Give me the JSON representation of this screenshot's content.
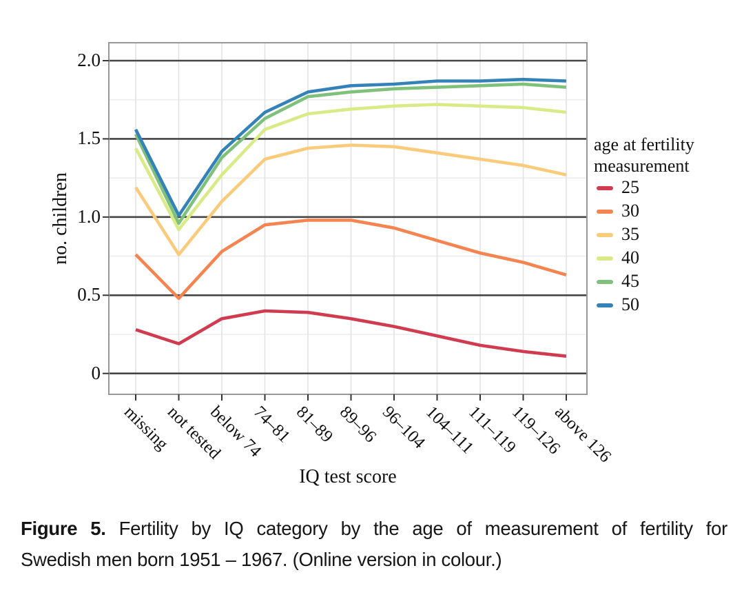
{
  "figure": {
    "caption_label": "Figure 5.",
    "caption_line1": "Fertility by IQ category by the age of measurement of fertility for",
    "caption_line2": "Swedish men born 1951 – 1967. (Online version in colour.)"
  },
  "chart_data": {
    "type": "line",
    "title": "",
    "xlabel": "IQ test score",
    "ylabel": "no. children",
    "categories": [
      "missing",
      "not tested",
      "below 74",
      "74–81",
      "81–89",
      "89–96",
      "96–104",
      "104–111",
      "111–119",
      "119–126",
      "above 126"
    ],
    "ylim": [
      0,
      2.0
    ],
    "yticks": [
      0,
      0.5,
      1.0,
      1.5,
      2.0
    ],
    "ytick_labels": [
      "0",
      "0.5",
      "1.0",
      "1.5",
      "2.0"
    ],
    "minor_yticks": [
      0.25,
      0.75,
      1.25,
      1.75
    ],
    "grid": {
      "major_horizontal": "dark",
      "minor_horizontal": "light",
      "vertical_at_categories": "light"
    },
    "legend": {
      "position": "right",
      "title_line1": "age at fertility",
      "title_line2": "measurement"
    },
    "series": [
      {
        "name": "25",
        "color": "#d13b50",
        "values": [
          0.28,
          0.19,
          0.35,
          0.4,
          0.39,
          0.35,
          0.3,
          0.24,
          0.18,
          0.14,
          0.11
        ]
      },
      {
        "name": "30",
        "color": "#f58450",
        "values": [
          0.76,
          0.48,
          0.78,
          0.95,
          0.98,
          0.98,
          0.93,
          0.85,
          0.77,
          0.71,
          0.63
        ]
      },
      {
        "name": "35",
        "color": "#fbcb7c",
        "values": [
          1.19,
          0.76,
          1.1,
          1.37,
          1.44,
          1.46,
          1.45,
          1.41,
          1.37,
          1.33,
          1.27
        ]
      },
      {
        "name": "40",
        "color": "#d8eb87",
        "values": [
          1.44,
          0.92,
          1.27,
          1.56,
          1.66,
          1.69,
          1.71,
          1.72,
          1.71,
          1.7,
          1.67
        ]
      },
      {
        "name": "45",
        "color": "#7fc17b",
        "values": [
          1.53,
          0.96,
          1.38,
          1.63,
          1.77,
          1.8,
          1.82,
          1.83,
          1.84,
          1.85,
          1.83
        ]
      },
      {
        "name": "50",
        "color": "#3482b8",
        "values": [
          1.56,
          1.01,
          1.42,
          1.67,
          1.8,
          1.84,
          1.85,
          1.87,
          1.87,
          1.88,
          1.87
        ]
      }
    ],
    "style": {
      "frame_color": "#979797",
      "major_grid_color": "#454545",
      "minor_grid_color": "#ededed",
      "vertical_grid_color": "#e3e3e3",
      "tick_color": "#333333",
      "line_width": 4.6
    }
  }
}
